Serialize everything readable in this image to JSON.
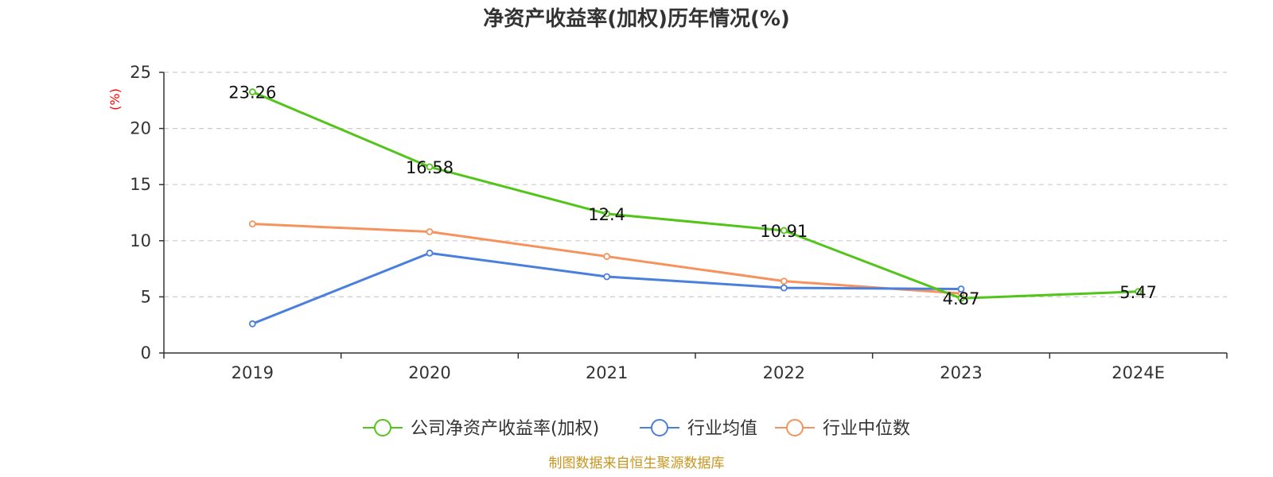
{
  "chart_data": {
    "type": "line",
    "title": "净资产收益率(加权)历年情况(%)",
    "ylabel": "(%)",
    "categories": [
      "2019",
      "2020",
      "2021",
      "2022",
      "2023",
      "2024E"
    ],
    "ylim": [
      0,
      25
    ],
    "yticks": [
      0,
      5,
      10,
      15,
      20,
      25
    ],
    "grid": true,
    "legend_position": "bottom",
    "series": [
      {
        "name": "公司净资产收益率(加权)",
        "color": "#52c41a",
        "values": [
          23.26,
          16.58,
          12.4,
          10.91,
          4.87,
          5.47
        ],
        "labels": [
          "23.26",
          "16.58",
          "12.4",
          "10.91",
          "4.87",
          "5.47"
        ]
      },
      {
        "name": "行业均值",
        "color": "#4a7fdc",
        "values": [
          2.6,
          8.9,
          6.8,
          5.8,
          5.7,
          null
        ]
      },
      {
        "name": "行业中位数",
        "color": "#f5925e",
        "values": [
          11.5,
          10.8,
          8.6,
          6.4,
          5.3,
          null
        ]
      }
    ]
  },
  "source_note": "制图数据来自恒生聚源数据库"
}
